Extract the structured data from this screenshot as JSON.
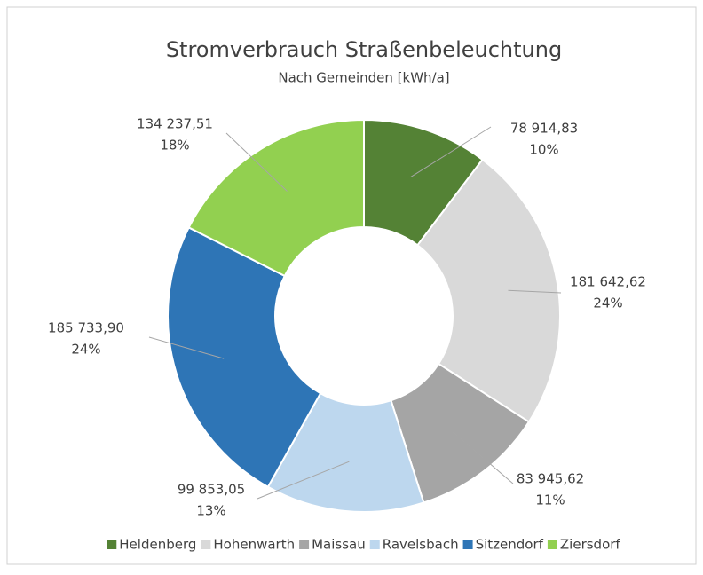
{
  "chart_data": {
    "type": "donut",
    "title": "Stromverbrauch Straßenbeleuchtung",
    "subtitle": "Nach Gemeinden [kWh/a]",
    "categories": [
      "Heldenberg",
      "Hohenwarth",
      "Maissau",
      "Ravelsbach",
      "Sitzendorf",
      "Ziersdorf"
    ],
    "values": [
      78914.83,
      181642.62,
      83945.62,
      99853.05,
      185733.9,
      134237.51
    ],
    "value_labels": [
      "78 914,83",
      "181 642,62",
      "83 945,62",
      "99 853,05",
      "185 733,90",
      "134 237,51"
    ],
    "percent_labels": [
      "10%",
      "24%",
      "11%",
      "13%",
      "24%",
      "18%"
    ],
    "colors": [
      "#548235",
      "#d9d9d9",
      "#a5a5a5",
      "#bdd7ee",
      "#2e75b6",
      "#92d050"
    ],
    "legend": "bottom"
  }
}
